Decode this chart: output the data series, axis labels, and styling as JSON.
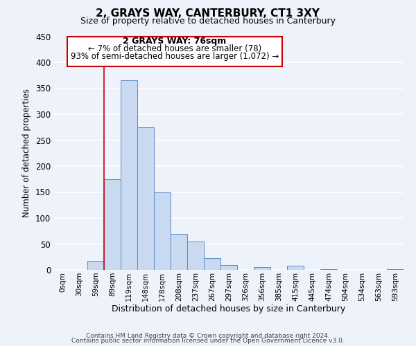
{
  "title": "2, GRAYS WAY, CANTERBURY, CT1 3XY",
  "subtitle": "Size of property relative to detached houses in Canterbury",
  "xlabel": "Distribution of detached houses by size in Canterbury",
  "ylabel": "Number of detached properties",
  "bar_color": "#c8d9f0",
  "bar_edge_color": "#5b8cc8",
  "bins": [
    "0sqm",
    "30sqm",
    "59sqm",
    "89sqm",
    "119sqm",
    "148sqm",
    "178sqm",
    "208sqm",
    "237sqm",
    "267sqm",
    "297sqm",
    "326sqm",
    "356sqm",
    "385sqm",
    "415sqm",
    "445sqm",
    "474sqm",
    "504sqm",
    "534sqm",
    "563sqm",
    "593sqm"
  ],
  "values": [
    0,
    0,
    18,
    175,
    365,
    275,
    150,
    70,
    55,
    23,
    10,
    0,
    6,
    0,
    8,
    0,
    1,
    0,
    0,
    0,
    1
  ],
  "ylim": [
    0,
    450
  ],
  "yticks": [
    0,
    50,
    100,
    150,
    200,
    250,
    300,
    350,
    400,
    450
  ],
  "annotation_title": "2 GRAYS WAY: 76sqm",
  "annotation_line1": "← 7% of detached houses are smaller (78)",
  "annotation_line2": "93% of semi-detached houses are larger (1,072) →",
  "box_color": "#ffffff",
  "box_edge_color": "#cc0000",
  "vline_color": "#cc0000",
  "footer1": "Contains HM Land Registry data © Crown copyright and database right 2024.",
  "footer2": "Contains public sector information licensed under the Open Government Licence v3.0.",
  "background_color": "#eef2fb",
  "grid_color": "#ffffff"
}
